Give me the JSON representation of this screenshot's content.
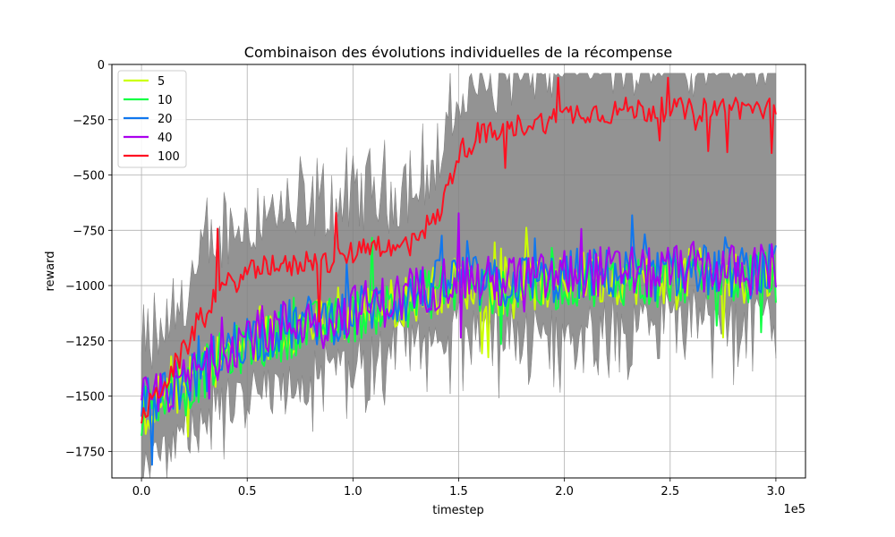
{
  "chart_data": {
    "type": "line",
    "title": "Combinaison des évolutions individuelles de la récompense",
    "xlabel": "timestep",
    "ylabel": "reward",
    "x_offset_label": "1e5",
    "xlim": [
      -14000,
      314000
    ],
    "ylim": [
      -1870,
      0
    ],
    "x_ticks": [
      0,
      50000,
      100000,
      150000,
      200000,
      250000,
      300000
    ],
    "x_tick_labels": [
      "0.0",
      "0.5",
      "1.0",
      "1.5",
      "2.0",
      "2.5",
      "3.0"
    ],
    "y_ticks": [
      0,
      -250,
      -500,
      -750,
      -1000,
      -1250,
      -1500,
      -1750
    ],
    "y_tick_labels": [
      "0",
      "−250",
      "−500",
      "−750",
      "−1000",
      "−1250",
      "−1500",
      "−1750"
    ],
    "grid": true,
    "legend_position": "top-left",
    "band_color": "#808080",
    "x": [
      0,
      10000,
      20000,
      30000,
      40000,
      50000,
      60000,
      70000,
      80000,
      90000,
      100000,
      110000,
      120000,
      130000,
      140000,
      150000,
      160000,
      170000,
      180000,
      190000,
      200000,
      210000,
      220000,
      230000,
      240000,
      250000,
      260000,
      270000,
      280000,
      290000,
      300000
    ],
    "series": [
      {
        "name": "5",
        "color": "#ccff00",
        "values": [
          -1580,
          -1500,
          -1460,
          -1380,
          -1300,
          -1250,
          -1240,
          -1200,
          -1180,
          -1160,
          -1130,
          -1100,
          -1080,
          -1050,
          -1010,
          -980,
          -1010,
          -1020,
          -990,
          -1000,
          -980,
          -960,
          -970,
          -960,
          -980,
          -960,
          -950,
          -950,
          -960,
          -960,
          -950
        ]
      },
      {
        "name": "10",
        "color": "#11ff44",
        "values": [
          -1560,
          -1490,
          -1480,
          -1390,
          -1310,
          -1270,
          -1250,
          -1210,
          -1190,
          -1170,
          -1140,
          -1110,
          -1090,
          -1060,
          -1020,
          -990,
          -1020,
          -1030,
          -1000,
          -1010,
          -990,
          -970,
          -980,
          -970,
          -990,
          -970,
          -960,
          -960,
          -970,
          -970,
          -960
        ]
      },
      {
        "name": "20",
        "color": "#1177ee",
        "values": [
          -1550,
          -1480,
          -1450,
          -1370,
          -1290,
          -1230,
          -1220,
          -1180,
          -1160,
          -1150,
          -1120,
          -1090,
          -1070,
          -1040,
          -1000,
          -960,
          -990,
          -1000,
          -970,
          -980,
          -960,
          -940,
          -950,
          -940,
          -960,
          -940,
          -930,
          -930,
          -940,
          -940,
          -930
        ]
      },
      {
        "name": "40",
        "color": "#aa00ee",
        "values": [
          -1540,
          -1470,
          -1440,
          -1360,
          -1280,
          -1220,
          -1200,
          -1170,
          -1150,
          -1140,
          -1110,
          -1080,
          -1060,
          -1030,
          -990,
          -950,
          -980,
          -990,
          -960,
          -970,
          -950,
          -930,
          -940,
          -930,
          -950,
          -930,
          -920,
          -920,
          -930,
          -930,
          -920
        ]
      },
      {
        "name": "100",
        "color": "#ff1122",
        "values": [
          -1600,
          -1450,
          -1300,
          -1100,
          -1000,
          -950,
          -900,
          -920,
          -880,
          -900,
          -850,
          -800,
          -850,
          -760,
          -700,
          -400,
          -320,
          -310,
          -270,
          -260,
          -230,
          -210,
          -220,
          -200,
          -210,
          -200,
          -210,
          -200,
          -190,
          -200,
          -200
        ]
      }
    ]
  }
}
